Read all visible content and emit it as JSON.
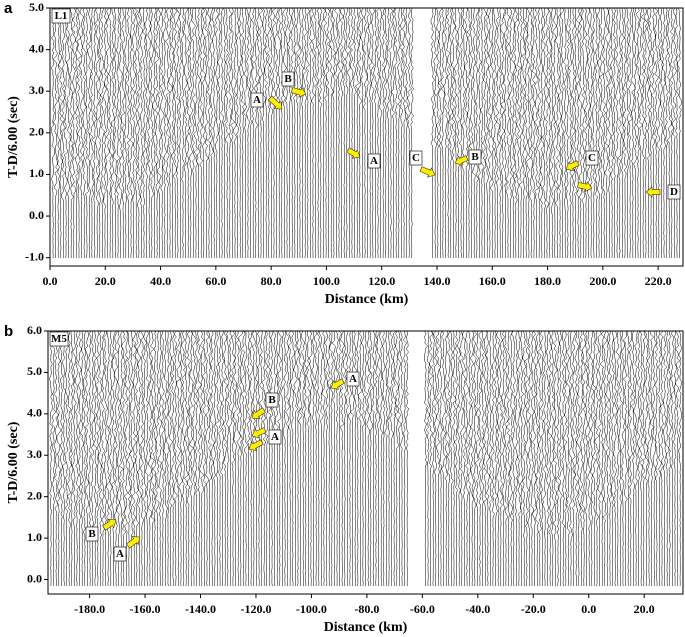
{
  "chart_data": [
    {
      "type": "record-section",
      "panel": "a",
      "line": "L1",
      "x_label": "Distance (km)",
      "y_label": "T-D/6.00 (sec)",
      "xlim": [
        0,
        229
      ],
      "ylim": [
        -1.2,
        5
      ],
      "xticks": [
        {
          "value": 0,
          "label": "0.0"
        },
        {
          "value": 20,
          "label": "20.0"
        },
        {
          "value": 40,
          "label": "40.0"
        },
        {
          "value": 60,
          "label": "60.0"
        },
        {
          "value": 80,
          "label": "80.0"
        },
        {
          "value": 100,
          "label": "100.0"
        },
        {
          "value": 120,
          "label": "120.0"
        },
        {
          "value": 140,
          "label": "140.0"
        },
        {
          "value": 160,
          "label": "160.0"
        },
        {
          "value": 180,
          "label": "180.0"
        },
        {
          "value": 200,
          "label": "200.0"
        },
        {
          "value": 220,
          "label": "220.0"
        }
      ],
      "yticks": [
        {
          "value": -1,
          "label": "-1.0"
        },
        {
          "value": 0,
          "label": "0.0"
        },
        {
          "value": 1,
          "label": "1.0"
        },
        {
          "value": 2,
          "label": "2.0"
        },
        {
          "value": 3,
          "label": "3.0"
        },
        {
          "value": 4,
          "label": "4.0"
        },
        {
          "value": 5,
          "label": "5.0"
        }
      ],
      "annotations": [
        "A",
        "B",
        "A",
        "C",
        "B",
        "C",
        "D"
      ]
    },
    {
      "type": "record-section",
      "panel": "b",
      "line": "M5",
      "x_label": "Distance (km)",
      "y_label": "T-D/6.00 (sec)",
      "xlim": [
        -195,
        34
      ],
      "ylim": [
        -0.35,
        6
      ],
      "xticks": [
        {
          "value": -180,
          "label": "-180.0"
        },
        {
          "value": -160,
          "label": "-160.0"
        },
        {
          "value": -140,
          "label": "-140.0"
        },
        {
          "value": -120,
          "label": "-120.0"
        },
        {
          "value": -100,
          "label": "-100.0"
        },
        {
          "value": -80,
          "label": "-80.0"
        },
        {
          "value": -60,
          "label": "-60.0"
        },
        {
          "value": -40,
          "label": "-40.0"
        },
        {
          "value": -20,
          "label": "-20.0"
        },
        {
          "value": 0,
          "label": "0.0"
        },
        {
          "value": 20,
          "label": "20.0"
        }
      ],
      "yticks": [
        {
          "value": 0,
          "label": "0.0"
        },
        {
          "value": 1,
          "label": "1.0"
        },
        {
          "value": 2,
          "label": "2.0"
        },
        {
          "value": 3,
          "label": "3.0"
        },
        {
          "value": 4,
          "label": "4.0"
        },
        {
          "value": 5,
          "label": "5.0"
        },
        {
          "value": 6,
          "label": "6.0"
        }
      ],
      "annotations": [
        "A",
        "B",
        "A",
        "B",
        "A"
      ]
    }
  ]
}
